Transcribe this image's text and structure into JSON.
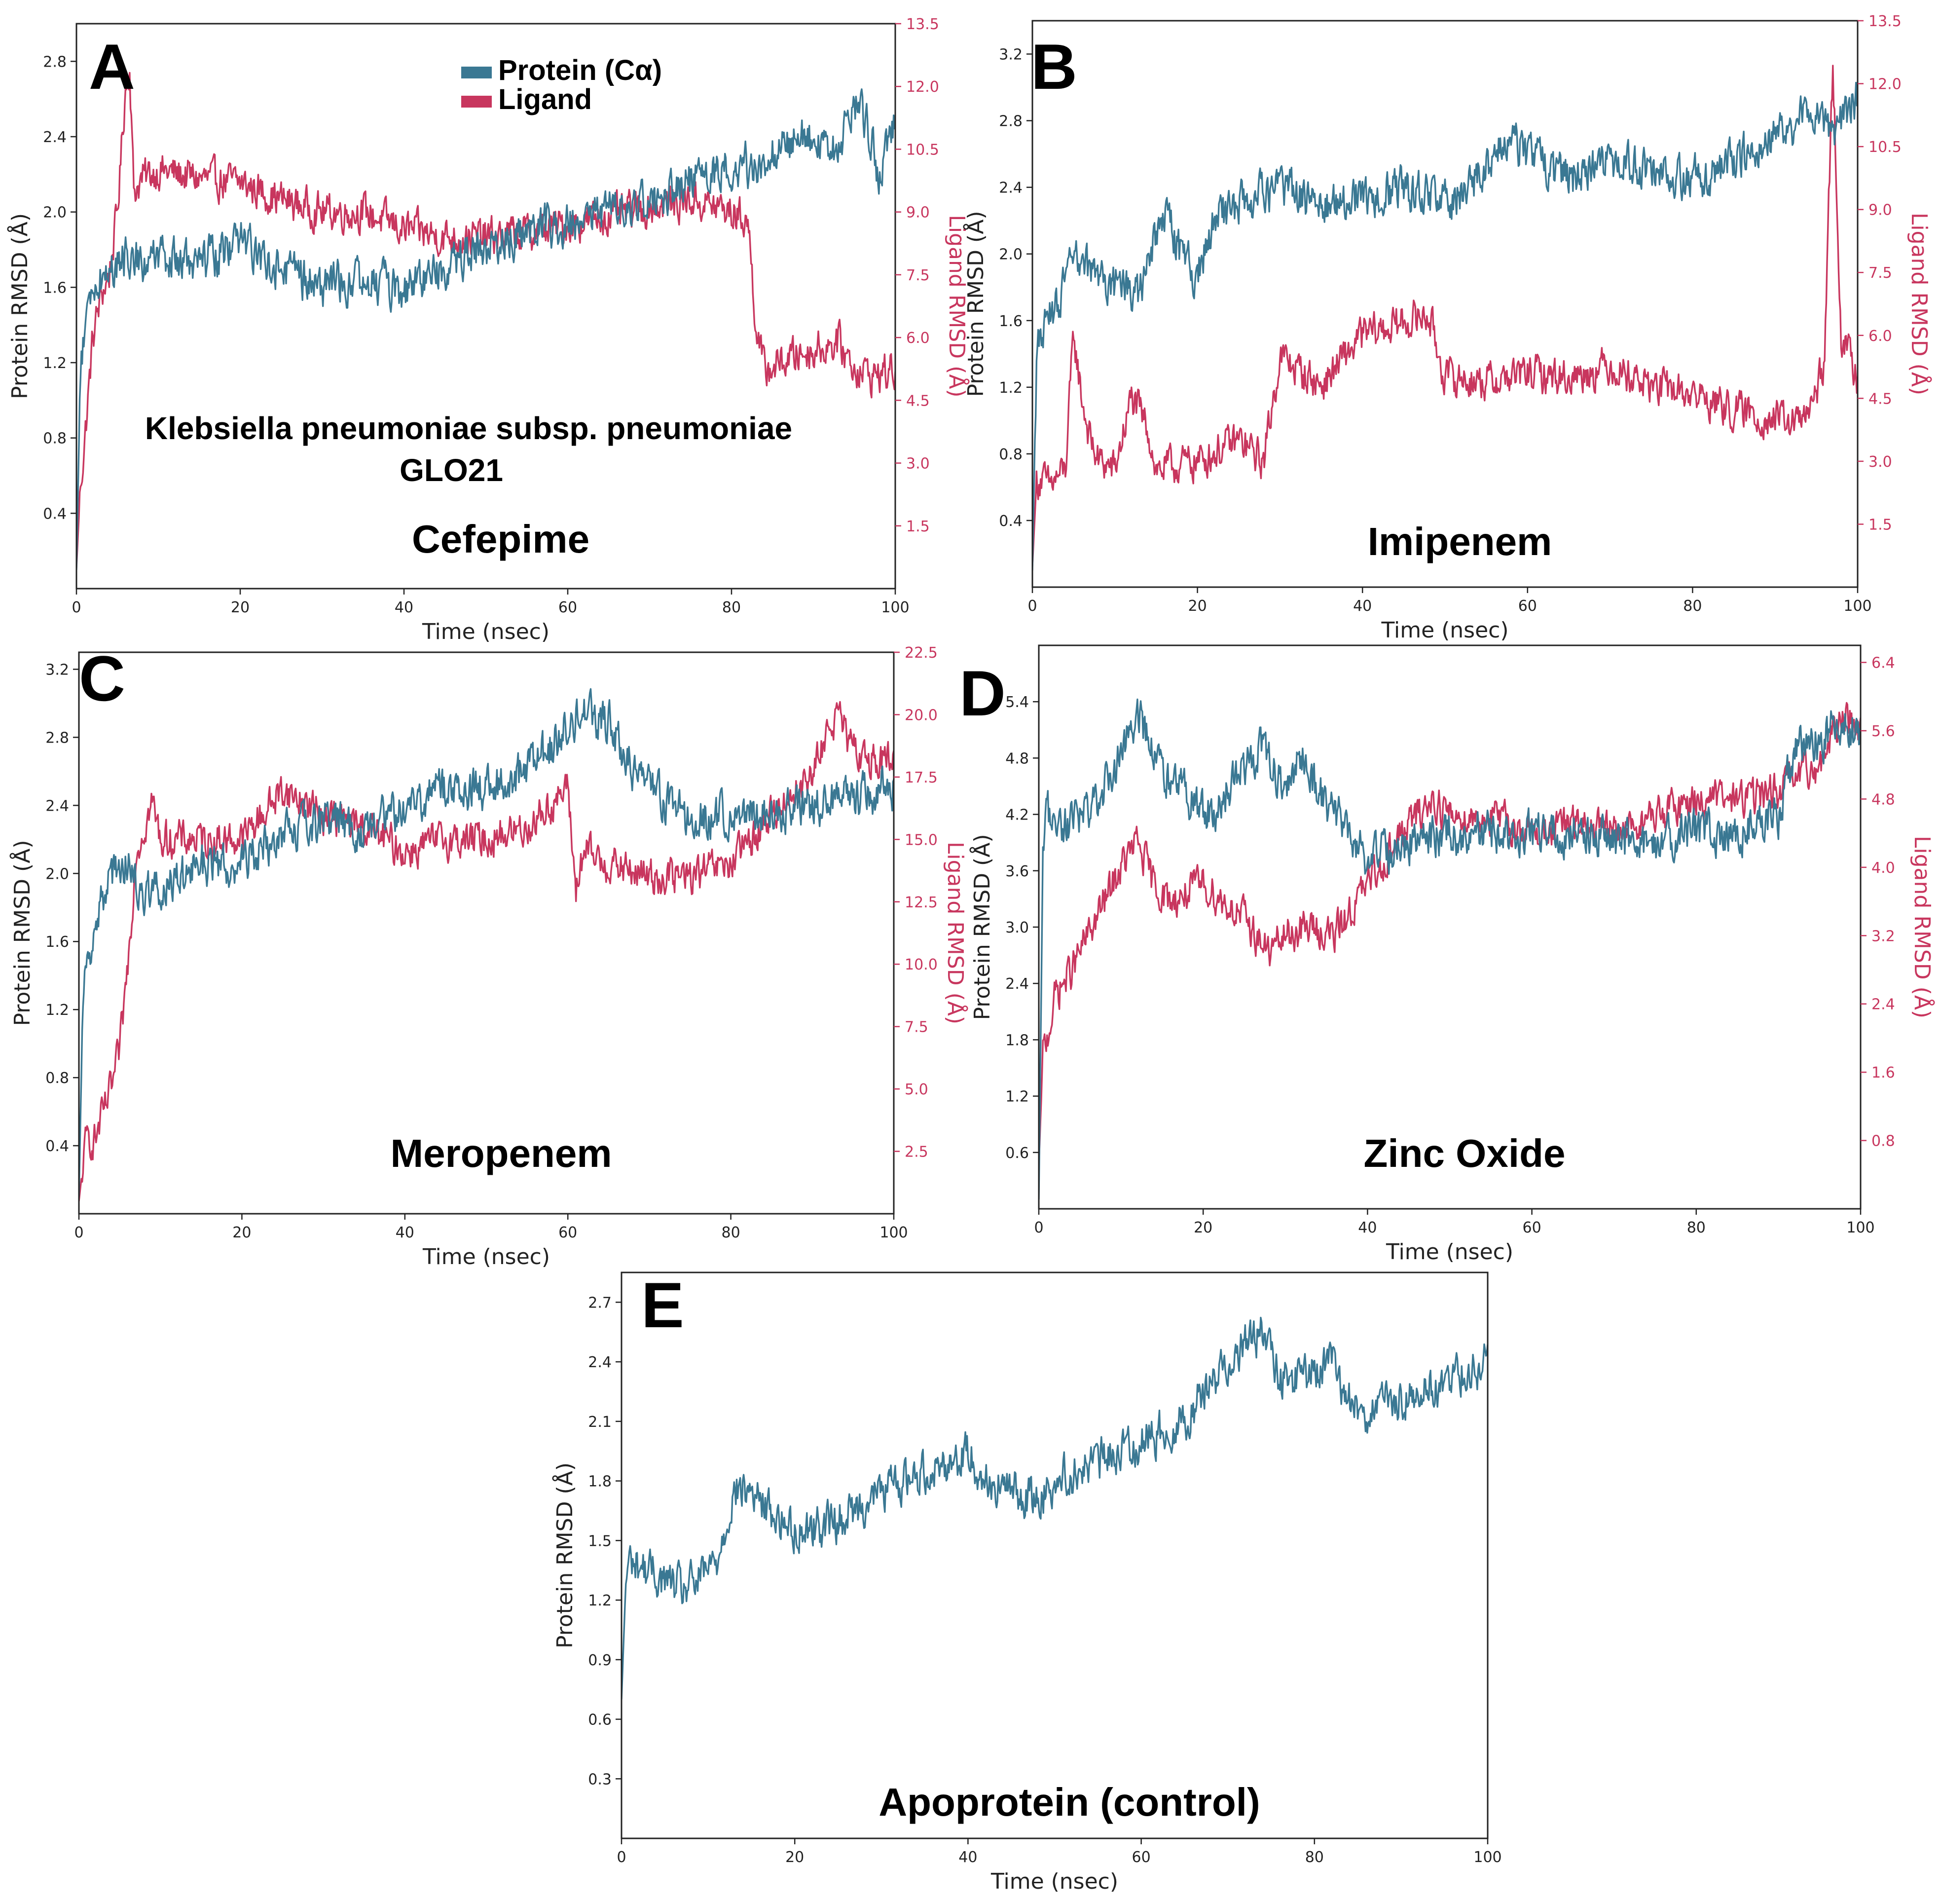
{
  "figure": {
    "colors": {
      "protein": "#3a7893",
      "ligand": "#c8365e",
      "axis": "#222222",
      "ligand_tick": "#c8365e"
    },
    "legend": {
      "protein": "Protein (Cα)",
      "ligand": "Ligand"
    },
    "species_label": [
      "Klebsiella pneumoniae subsp. pneumoniae",
      "GLO21"
    ]
  },
  "chart_data": [
    {
      "panel": "A",
      "type": "line",
      "title": "Cefepime",
      "xlabel": "Time (nsec)",
      "ylabel": "Protein RMSD (Å)",
      "y2label": "Ligand RMSD (Å)",
      "xlim": [
        0,
        100
      ],
      "xticks": [
        "0",
        "20",
        "40",
        "60",
        "80",
        "100"
      ],
      "ylim": [
        0.0,
        3.0
      ],
      "yticks": [
        "0.4",
        "0.8",
        "1.2",
        "1.6",
        "2.0",
        "2.4",
        "2.8"
      ],
      "y2lim": [
        0.0,
        13.5
      ],
      "y2ticks": [
        "1.5",
        "3.0",
        "4.5",
        "6.0",
        "7.5",
        "9.0",
        "10.5",
        "12.0",
        "13.5"
      ],
      "series": [
        {
          "name": "Protein (Cα)",
          "axis": "left",
          "x": [
            0,
            0.5,
            1,
            2,
            4,
            6,
            8,
            10,
            15,
            20,
            25,
            30,
            35,
            40,
            45,
            50,
            55,
            60,
            65,
            70,
            75,
            80,
            83,
            86,
            89,
            92,
            94,
            95,
            96,
            97,
            98,
            100
          ],
          "values": [
            0.1,
            1.2,
            1.35,
            1.6,
            1.7,
            1.75,
            1.75,
            1.75,
            1.72,
            1.85,
            1.7,
            1.6,
            1.65,
            1.58,
            1.72,
            1.82,
            1.9,
            1.95,
            2.0,
            2.05,
            2.15,
            2.25,
            2.25,
            2.35,
            2.4,
            2.3,
            2.45,
            2.6,
            2.55,
            2.4,
            2.2,
            2.5
          ]
        },
        {
          "name": "Ligand",
          "axis": "right",
          "x": [
            0,
            0.5,
            1,
            2,
            3,
            4,
            5,
            6,
            6.5,
            7,
            8,
            10,
            15,
            20,
            25,
            30,
            35,
            40,
            45,
            50,
            55,
            60,
            65,
            70,
            75,
            80,
            82,
            83,
            84,
            86,
            88,
            90,
            93,
            95,
            97,
            100
          ],
          "values": [
            0.5,
            2.5,
            3.5,
            6.0,
            7.0,
            7.5,
            9.0,
            12.0,
            12.5,
            9.5,
            9.8,
            10.0,
            9.8,
            9.7,
            9.3,
            9.0,
            9.0,
            8.6,
            8.4,
            8.4,
            8.5,
            8.7,
            8.9,
            9.1,
            9.3,
            9.0,
            8.8,
            6.3,
            5.2,
            5.4,
            5.6,
            5.7,
            5.9,
            5.3,
            5.1,
            5.2
          ]
        }
      ]
    },
    {
      "panel": "B",
      "type": "line",
      "title": "Imipenem",
      "xlabel": "Time (nsec)",
      "ylabel": "Protein RMSD (Å)",
      "y2label": "Ligand RMSD (Å)",
      "xlim": [
        0,
        100
      ],
      "xticks": [
        "0",
        "20",
        "40",
        "60",
        "80",
        "100"
      ],
      "ylim": [
        0.0,
        3.4
      ],
      "yticks": [
        "0.4",
        "0.8",
        "1.2",
        "1.6",
        "2.0",
        "2.4",
        "2.8",
        "3.2"
      ],
      "y2lim": [
        0.0,
        13.5
      ],
      "y2ticks": [
        "1.5",
        "3.0",
        "4.5",
        "6.0",
        "7.5",
        "9.0",
        "10.5",
        "12.0",
        "13.5"
      ],
      "series": [
        {
          "name": "Protein (Cα)",
          "axis": "left",
          "x": [
            0,
            0.5,
            1,
            3,
            5,
            7,
            10,
            13,
            16,
            18,
            20,
            22,
            25,
            30,
            35,
            40,
            45,
            50,
            55,
            57,
            60,
            65,
            70,
            75,
            80,
            85,
            90,
            95,
            97,
            100
          ],
          "values": [
            0.1,
            1.4,
            1.5,
            1.7,
            1.95,
            1.9,
            1.8,
            1.75,
            2.25,
            2.0,
            1.85,
            2.2,
            2.3,
            2.4,
            2.3,
            2.35,
            2.4,
            2.3,
            2.5,
            2.7,
            2.6,
            2.45,
            2.55,
            2.5,
            2.45,
            2.55,
            2.7,
            2.85,
            2.7,
            2.95
          ]
        },
        {
          "name": "Ligand",
          "axis": "right",
          "x": [
            0,
            0.5,
            1,
            2,
            4,
            5,
            6,
            7,
            8,
            10,
            12,
            14,
            15,
            20,
            25,
            28,
            30,
            35,
            40,
            45,
            48,
            50,
            55,
            60,
            65,
            70,
            75,
            80,
            85,
            90,
            93,
            95,
            96,
            97,
            98,
            100
          ],
          "values": [
            0.5,
            2.5,
            2.6,
            2.4,
            2.8,
            6.0,
            4.5,
            3.5,
            3.0,
            2.8,
            4.5,
            3.8,
            2.8,
            3.0,
            3.5,
            3.0,
            5.5,
            4.8,
            6.0,
            6.3,
            6.5,
            5.0,
            4.9,
            5.1,
            5.0,
            5.3,
            4.8,
            4.6,
            4.2,
            4.0,
            3.9,
            4.5,
            5.5,
            12.5,
            6.0,
            5.0
          ]
        }
      ]
    },
    {
      "panel": "C",
      "type": "line",
      "title": "Meropenem",
      "xlabel": "Time (nsec)",
      "ylabel": "Protein RMSD (Å)",
      "y2label": "Ligand RMSD (Å)",
      "xlim": [
        0,
        100
      ],
      "xticks": [
        "0",
        "20",
        "40",
        "60",
        "80",
        "100"
      ],
      "ylim": [
        0.0,
        3.3
      ],
      "yticks": [
        "0.4",
        "0.8",
        "1.2",
        "1.6",
        "2.0",
        "2.4",
        "2.8",
        "3.2"
      ],
      "y2lim": [
        0.0,
        22.5
      ],
      "y2ticks": [
        "2.5",
        "5.0",
        "7.5",
        "10.0",
        "12.5",
        "15.0",
        "17.5",
        "20.0",
        "22.5"
      ],
      "series": [
        {
          "name": "Protein (Cα)",
          "axis": "left",
          "x": [
            0,
            0.5,
            1,
            2,
            4,
            6,
            8,
            10,
            15,
            20,
            25,
            30,
            35,
            40,
            45,
            50,
            55,
            60,
            62,
            65,
            68,
            70,
            75,
            80,
            85,
            90,
            95,
            100
          ],
          "values": [
            0.1,
            1.3,
            1.5,
            1.7,
            2.0,
            2.05,
            1.9,
            1.9,
            2.05,
            2.05,
            2.25,
            2.3,
            2.25,
            2.4,
            2.5,
            2.5,
            2.6,
            2.85,
            2.95,
            2.9,
            2.6,
            2.5,
            2.3,
            2.35,
            2.35,
            2.4,
            2.45,
            2.5
          ]
        },
        {
          "name": "Ligand",
          "axis": "right",
          "x": [
            0,
            0.5,
            1,
            2,
            3,
            4,
            5,
            6,
            7,
            8,
            9,
            10,
            15,
            20,
            25,
            30,
            35,
            40,
            45,
            50,
            55,
            60,
            61,
            62,
            65,
            70,
            75,
            80,
            85,
            88,
            90,
            92,
            93,
            95,
            100
          ],
          "values": [
            0.5,
            2.0,
            3.0,
            3.0,
            4.0,
            5.0,
            6.5,
            10.0,
            14.5,
            15.5,
            16.5,
            15.0,
            15.0,
            15.0,
            17.0,
            16.0,
            15.5,
            14.5,
            15.0,
            15.0,
            15.5,
            17.0,
            13.0,
            14.5,
            14.0,
            13.5,
            13.5,
            14.0,
            16.0,
            17.0,
            17.5,
            19.5,
            20.0,
            18.5,
            18.0
          ]
        }
      ]
    },
    {
      "panel": "D",
      "type": "line",
      "title": "Zinc Oxide",
      "xlabel": "Time (nsec)",
      "ylabel": "Protein RMSD (Å)",
      "y2label": "Ligand RMSD (Å)",
      "xlim": [
        0,
        100
      ],
      "xticks": [
        "0",
        "20",
        "40",
        "60",
        "80",
        "100"
      ],
      "ylim": [
        0.0,
        6.0
      ],
      "yticks": [
        "0.6",
        "1.2",
        "1.8",
        "2.4",
        "3.0",
        "3.6",
        "4.2",
        "4.8",
        "5.4"
      ],
      "y2lim": [
        0.0,
        6.6
      ],
      "y2ticks": [
        "0.8",
        "1.6",
        "2.4",
        "3.2",
        "4.0",
        "4.8",
        "5.6",
        "6.4"
      ],
      "series": [
        {
          "name": "Protein (Cα)",
          "axis": "left",
          "x": [
            0,
            0.5,
            1,
            3,
            6,
            9,
            12,
            14,
            16,
            18,
            20,
            22,
            24,
            27,
            30,
            32,
            35,
            38,
            40,
            45,
            50,
            55,
            60,
            65,
            70,
            75,
            80,
            85,
            90,
            92,
            95,
            98,
            100
          ],
          "values": [
            0.1,
            3.8,
            4.2,
            4.1,
            4.2,
            4.6,
            5.3,
            4.8,
            4.5,
            4.4,
            4.2,
            4.3,
            4.6,
            4.9,
            4.5,
            4.8,
            4.3,
            4.0,
            3.7,
            3.9,
            4.0,
            4.0,
            4.0,
            4.0,
            3.9,
            3.9,
            4.0,
            4.0,
            4.2,
            4.9,
            5.0,
            5.2,
            5.0
          ]
        },
        {
          "name": "Ligand",
          "axis": "right",
          "x": [
            0,
            0.5,
            1,
            2,
            4,
            6,
            8,
            10,
            12,
            14,
            16,
            20,
            25,
            28,
            30,
            33,
            36,
            40,
            45,
            48,
            50,
            55,
            60,
            65,
            70,
            75,
            80,
            85,
            90,
            95,
            98,
            100
          ],
          "values": [
            0.5,
            1.8,
            2.0,
            2.5,
            2.8,
            3.2,
            3.6,
            4.0,
            4.3,
            3.8,
            3.6,
            3.8,
            3.4,
            3.0,
            3.2,
            3.3,
            3.2,
            3.8,
            4.5,
            4.8,
            4.6,
            4.6,
            4.4,
            4.5,
            4.4,
            4.6,
            4.8,
            4.8,
            4.9,
            5.2,
            5.8,
            5.6
          ]
        }
      ]
    },
    {
      "panel": "E",
      "type": "line",
      "title": "Apoprotein (control)",
      "xlabel": "Time (nsec)",
      "ylabel": "Protein RMSD (Å)",
      "xlim": [
        0,
        100
      ],
      "xticks": [
        "0",
        "20",
        "40",
        "60",
        "80",
        "100"
      ],
      "ylim": [
        0.0,
        2.85
      ],
      "yticks": [
        "0.3",
        "0.6",
        "0.9",
        "1.2",
        "1.5",
        "1.8",
        "2.1",
        "2.4",
        "2.7"
      ],
      "series": [
        {
          "name": "Protein (Cα)",
          "axis": "left",
          "x": [
            0,
            0.5,
            1,
            3,
            5,
            7,
            9,
            11,
            13,
            15,
            17,
            20,
            25,
            30,
            35,
            38,
            40,
            42,
            45,
            48,
            50,
            55,
            60,
            65,
            68,
            70,
            72,
            74,
            76,
            80,
            82,
            84,
            86,
            90,
            95,
            100
          ],
          "values": [
            0.7,
            1.3,
            1.4,
            1.35,
            1.3,
            1.25,
            1.3,
            1.4,
            1.75,
            1.75,
            1.65,
            1.55,
            1.6,
            1.75,
            1.85,
            1.9,
            1.95,
            1.8,
            1.75,
            1.7,
            1.8,
            1.9,
            2.0,
            2.1,
            2.3,
            2.4,
            2.5,
            2.55,
            2.3,
            2.35,
            2.4,
            2.2,
            2.15,
            2.2,
            2.3,
            2.4
          ]
        }
      ]
    }
  ]
}
